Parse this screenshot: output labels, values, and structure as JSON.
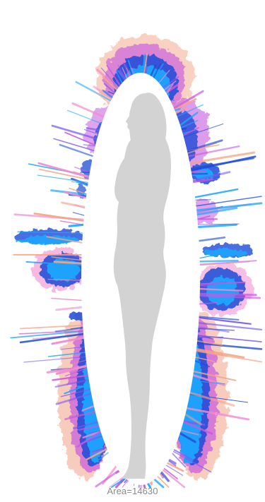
{
  "visualization": {
    "caption": "Area=14630",
    "silhouette": {
      "shape": "human-figure-side-profile",
      "color": "#d3d3d3"
    },
    "aura_colors": {
      "deep": "#1e4bd8",
      "mid": "#1fa6ff",
      "light": "#38d0ff",
      "violet": "#7b5cf0",
      "magenta": "#c85adf",
      "pink": "#f08bd0",
      "peach": "#f4a487"
    }
  }
}
